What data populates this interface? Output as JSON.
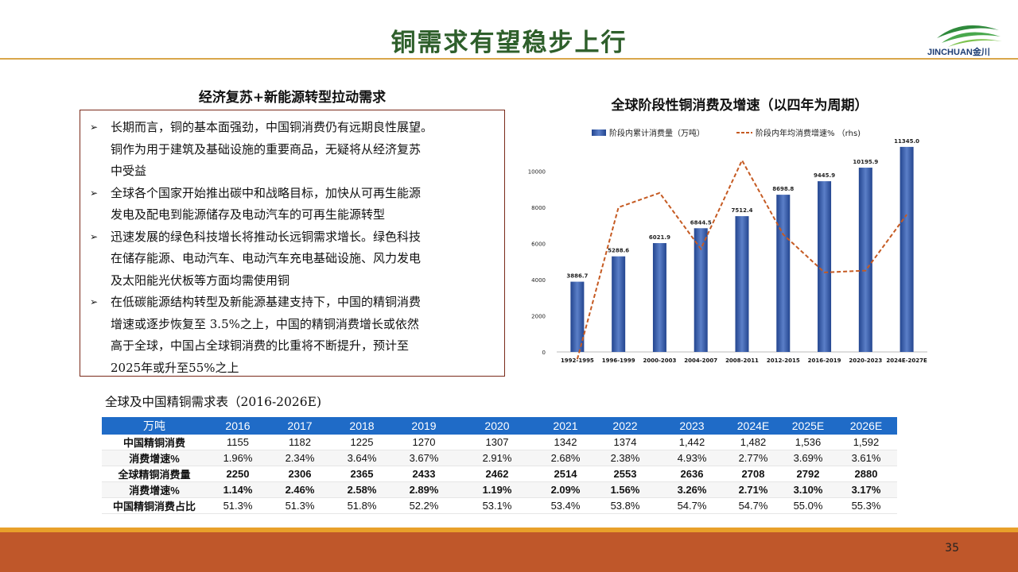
{
  "header": {
    "title": "铜需求有望稳步上行",
    "logo_text": "JINCHUAN金川",
    "logo_icon": "jinchuan-logo"
  },
  "left": {
    "heading": "经济复苏+新能源转型拉动需求",
    "bullet_icon": "arrow-bullet",
    "bullets": [
      [
        "长期而言，铜的基本面强劲，中国铜消费仍有远期良性展望。",
        "铜作为用于建筑及基础设施的重要商品，无疑将从经济复苏",
        "中受益"
      ],
      [
        "全球各个国家开始推出碳中和战略目标，加快从可再生能源",
        "发电及配电到能源储存及电动汽车的可再生能源转型"
      ],
      [
        "迅速发展的绿色科技增长将推动长远铜需求增长。绿色科技",
        "在储存能源、电动汽车、电动汽车充电基础设施、风力发电",
        "及太阳能光伏板等方面均需使用铜"
      ],
      [
        "在低碳能源结构转型及新能源基建支持下，中国的精铜消费",
        "增速或逐步恢复至 3.5%之上，中国的精铜消费增长或依然",
        "高于全球，中国占全球铜消费的比重将不断提升，预计至",
        "2025年或升至55%之上"
      ]
    ]
  },
  "chart_data": {
    "type": "bar",
    "title": "全球阶段性铜消费及增速（以四年为周期）",
    "categories": [
      "1992-1995",
      "1996-1999",
      "2000-2003",
      "2004-2007",
      "2008-2011",
      "2012-2015",
      "2016-2019",
      "2020-2023",
      "2024E-2027E"
    ],
    "series": [
      {
        "name": "阶段内累计消费量（万吨）",
        "type": "bar",
        "values": [
          3886.7,
          5288.6,
          6021.9,
          6844.5,
          7512.4,
          8698.8,
          9445.9,
          10195.9,
          11345.0
        ],
        "labels": [
          "3886.7",
          "5288.6",
          "6021.9",
          "6844.5",
          "7512.4",
          "8698.8",
          "9445.9",
          "10195.9",
          "11345.0"
        ]
      },
      {
        "name": "阶段内年均消费增速% （rhs)",
        "type": "line",
        "axis": "right",
        "values": [
          -0.4,
          8.0,
          8.8,
          5.7,
          10.6,
          6.5,
          4.4,
          4.5,
          7.6
        ]
      }
    ],
    "y_ticks": [
      "0",
      "2000",
      "4000",
      "6000",
      "8000",
      "10000"
    ],
    "ylim": [
      0,
      12000
    ],
    "y2lim": [
      0,
      12
    ],
    "legend_position": "top",
    "colors": {
      "bar": "#23458f",
      "bar_light": "#5b7fc8",
      "line": "#c55a22"
    }
  },
  "table": {
    "title": "全球及中国精铜需求表（2016-2026E)",
    "headers": [
      "万吨",
      "2016",
      "2017",
      "2018",
      "2019",
      "2020",
      "2021",
      "2022",
      "2023",
      "2024E",
      "2025E",
      "2026E"
    ],
    "rows": [
      [
        "中国精铜消费",
        "1155",
        "1182",
        "1225",
        "1270",
        "1307",
        "1342",
        "1374",
        "1,442",
        "1,482",
        "1,536",
        "1,592"
      ],
      [
        "消费增速%",
        "1.96%",
        "2.34%",
        "3.64%",
        "3.67%",
        "2.91%",
        "2.68%",
        "2.38%",
        "4.93%",
        "2.77%",
        "3.69%",
        "3.61%"
      ],
      [
        "全球精铜消费量",
        "2250",
        "2306",
        "2365",
        "2433",
        "2462",
        "2514",
        "2553",
        "2636",
        "2708",
        "2792",
        "2880"
      ],
      [
        "消费增速%",
        "1.14%",
        "2.46%",
        "2.58%",
        "2.89%",
        "1.19%",
        "2.09%",
        "1.56%",
        "3.26%",
        "2.71%",
        "3.10%",
        "3.17%"
      ],
      [
        "中国精铜消费占比",
        "51.3%",
        "51.3%",
        "51.8%",
        "52.2%",
        "53.1%",
        "53.4%",
        "53.8%",
        "54.7%",
        "54.7%",
        "55.0%",
        "55.3%"
      ]
    ],
    "bold_rows": [
      2,
      3
    ],
    "header_color": "#1f6bc7"
  },
  "footer": {
    "page_number": "35"
  }
}
